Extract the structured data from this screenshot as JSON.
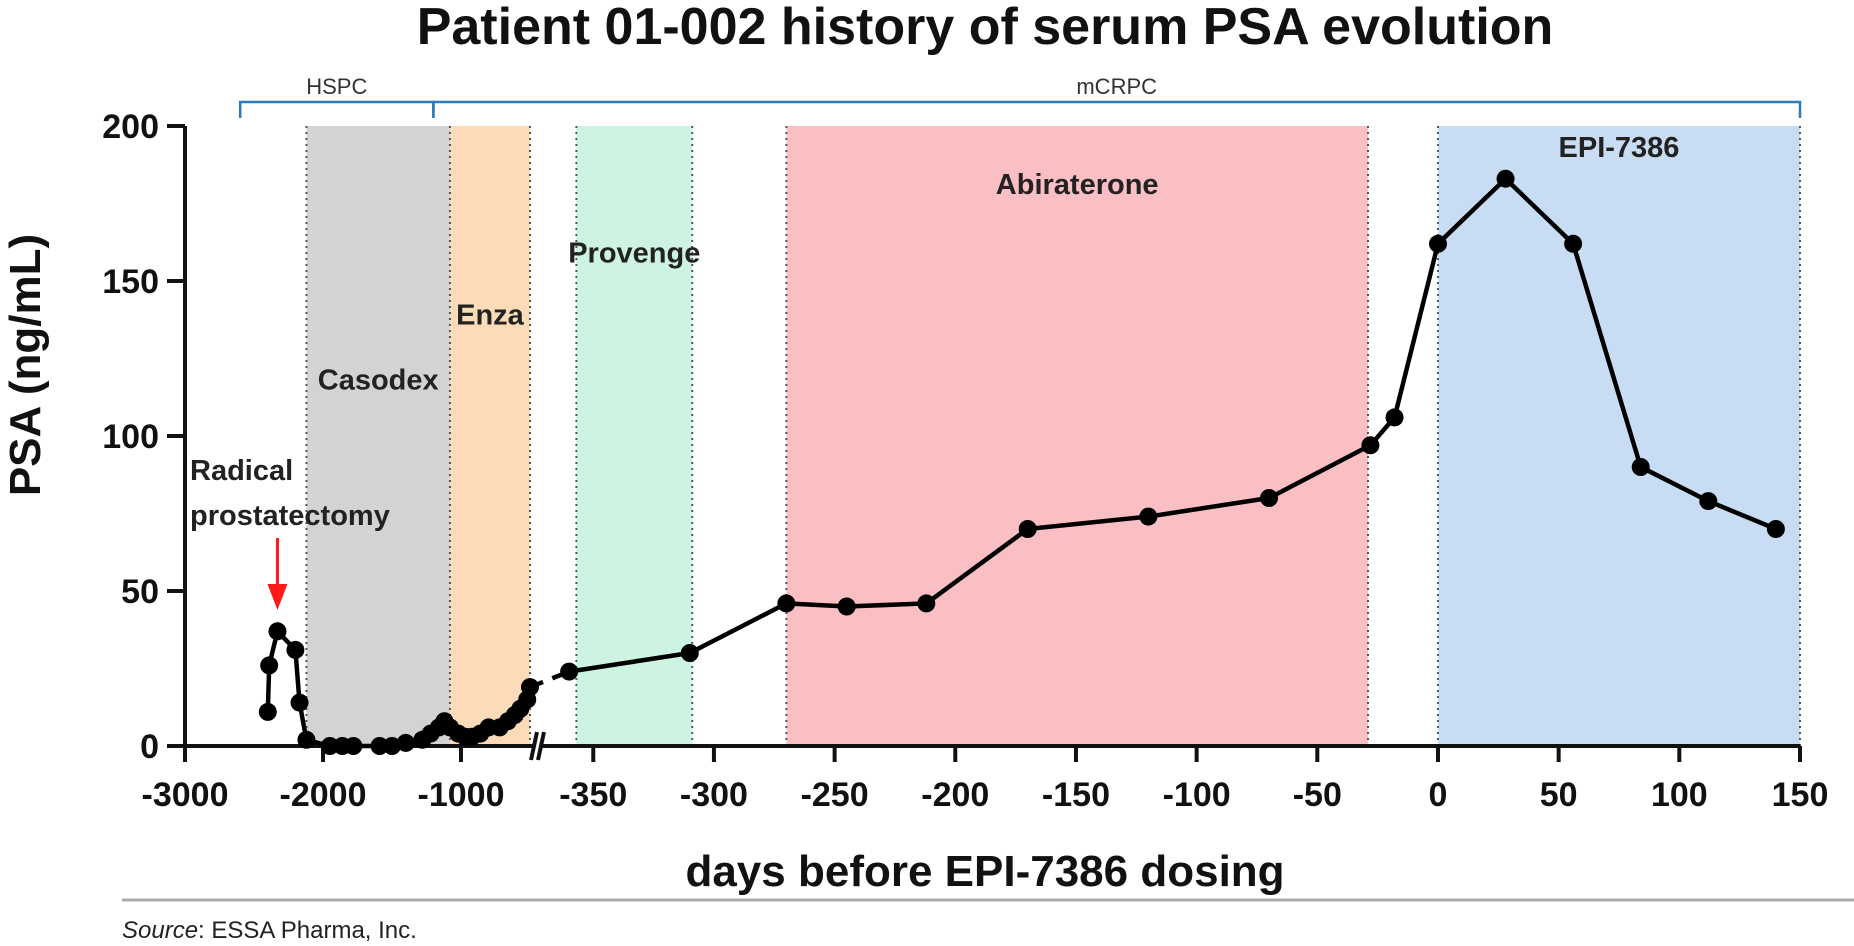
{
  "chart_data": {
    "type": "line",
    "title": "Patient 01-002 history of serum PSA evolution",
    "xlabel": "days before EPI-7386 dosing",
    "ylabel": "PSA (ng/mL)",
    "ylim": [
      0,
      200
    ],
    "yticks": [
      0,
      50,
      100,
      150,
      200
    ],
    "x_axis_segments": [
      {
        "range": [
          -3000,
          -500
        ],
        "ticks": [
          -3000,
          -2000,
          -1000
        ]
      },
      {
        "range": [
          -370,
          150
        ],
        "ticks": [
          -350,
          -300,
          -250,
          -200,
          -150,
          -100,
          -50,
          0,
          50,
          100,
          150
        ]
      }
    ],
    "grid": false,
    "series": [
      {
        "color": "#000000",
        "points": [
          [
            -2400,
            11
          ],
          [
            -2390,
            26
          ],
          [
            -2330,
            37
          ],
          [
            -2200,
            31
          ],
          [
            -2170,
            14
          ],
          [
            -2120,
            2
          ],
          [
            -1950,
            0
          ],
          [
            -1860,
            0
          ],
          [
            -1780,
            0
          ],
          [
            -1590,
            0
          ],
          [
            -1500,
            0
          ],
          [
            -1400,
            1
          ],
          [
            -1280,
            2
          ],
          [
            -1220,
            4
          ],
          [
            -1160,
            6
          ],
          [
            -1120,
            8
          ],
          [
            -1080,
            6
          ],
          [
            -1020,
            4
          ],
          [
            -970,
            3
          ],
          [
            -920,
            3
          ],
          [
            -860,
            4
          ],
          [
            -800,
            6
          ],
          [
            -720,
            6
          ],
          [
            -660,
            8
          ],
          [
            -610,
            10
          ],
          [
            -570,
            12
          ],
          [
            -520,
            15
          ],
          [
            -500,
            19
          ],
          [
            -360,
            24
          ],
          [
            -310,
            30
          ],
          [
            -270,
            46
          ],
          [
            -245,
            45
          ],
          [
            -212,
            46
          ],
          [
            -170,
            70
          ],
          [
            -120,
            74
          ],
          [
            -70,
            80
          ],
          [
            -28,
            97
          ],
          [
            -18,
            106
          ],
          [
            0,
            162
          ],
          [
            28,
            183
          ],
          [
            56,
            162
          ],
          [
            84,
            90
          ],
          [
            112,
            79
          ],
          [
            140,
            70
          ]
        ]
      }
    ],
    "phases": [
      {
        "label": "Casodex",
        "start": -2120,
        "end": -1080,
        "color": "#d3d3d3",
        "label_y": 115
      },
      {
        "label": "Enza",
        "start": -1080,
        "end": -500,
        "color": "#fcdcb8",
        "label_y": 136
      },
      {
        "label": "Provenge",
        "start": -357,
        "end": -309,
        "color": "#ccf4e0",
        "label_y": 156
      },
      {
        "label": "Abiraterone",
        "start": -270,
        "end": -29,
        "color": "#f9bfc3",
        "label_y": 178
      },
      {
        "label": "EPI-7386",
        "start": 0,
        "end": 150,
        "color": "#c8dcf4",
        "label_y": 190
      }
    ],
    "brackets": [
      {
        "label": "HSPC",
        "start": -2600,
        "end": -1200,
        "color": "#2f7ab8"
      },
      {
        "label": "mCRPC",
        "start": -1200,
        "end": 150,
        "color": "#2f7ab8"
      }
    ],
    "annotations": [
      {
        "lines": [
          "Radical",
          "prostatectomy"
        ],
        "x": -2330,
        "arrow_color": "#ff1a1a"
      }
    ]
  },
  "footer": {
    "source_label": "Source",
    "source_text": ": ESSA Pharma, Inc."
  }
}
